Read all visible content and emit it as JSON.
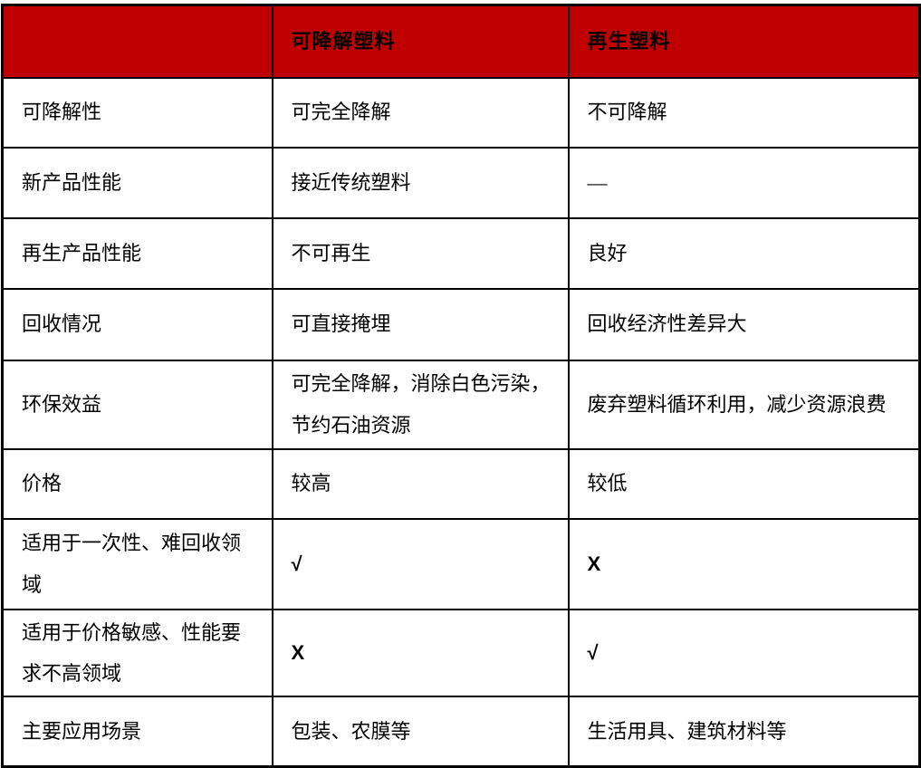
{
  "colors": {
    "header_bg": "#c00000",
    "header_text": "#ffffff",
    "border": "#000000",
    "body_text": "#000000"
  },
  "table": {
    "header": {
      "col1": "",
      "col2": "可降解塑料",
      "col3": "再生塑料"
    },
    "rows": [
      {
        "label": "可降解性",
        "degradable": "可完全降解",
        "recycled": "不可降解"
      },
      {
        "label": "新产品性能",
        "degradable": "接近传统塑料",
        "recycled": "—"
      },
      {
        "label": "再生产品性能",
        "degradable": "不可再生",
        "recycled": "良好"
      },
      {
        "label": "回收情况",
        "degradable": "可直接掩埋",
        "recycled": "回收经济性差异大"
      },
      {
        "label": "环保效益",
        "degradable": "可完全降解，消除白色污染，节约石油资源",
        "recycled": "废弃塑料循环利用，减少资源浪费"
      },
      {
        "label": "价格",
        "degradable": "较高",
        "recycled": "较低"
      },
      {
        "label": "适用于一次性、难回收领域",
        "degradable": "√",
        "recycled": "X"
      },
      {
        "label": "适用于价格敏感、性能要求不高领域",
        "degradable": "X",
        "recycled": "√"
      },
      {
        "label": "主要应用场景",
        "degradable": "包装、农膜等",
        "recycled": "生活用具、建筑材料等"
      }
    ]
  }
}
